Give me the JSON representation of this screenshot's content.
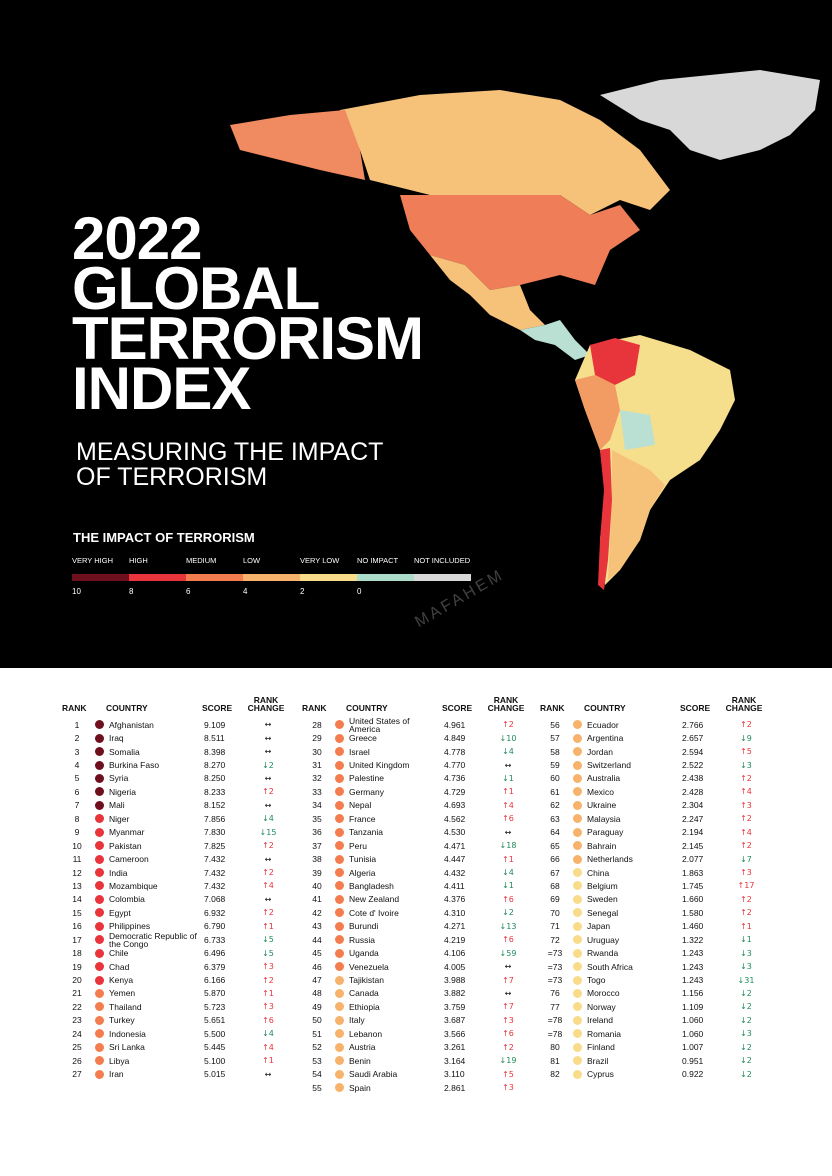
{
  "header": {
    "title_lines": [
      "2022",
      "GLOBAL",
      "TERRORISM",
      "INDEX"
    ],
    "subtitle_lines": [
      "MEASURING THE IMPACT",
      "OF TERRORISM"
    ]
  },
  "legend": {
    "title": "THE IMPACT OF TERRORISM",
    "items": [
      {
        "label": "VERY HIGH",
        "color": "#6d0f1c"
      },
      {
        "label": "HIGH",
        "color": "#e8343b"
      },
      {
        "label": "MEDIUM",
        "color": "#f47d4f"
      },
      {
        "label": "LOW",
        "color": "#f7b36b"
      },
      {
        "label": "VERY LOW",
        "color": "#f8dc8a"
      },
      {
        "label": "NO IMPACT",
        "color": "#aadcc9"
      },
      {
        "label": "NOT INCLUDED",
        "color": "#d8d8d8"
      }
    ],
    "scale": [
      10,
      8,
      6,
      4,
      2,
      0
    ]
  },
  "watermark": "MAFAHEM",
  "columns": [
    "RANK",
    "COUNTRY",
    "SCORE",
    "RANK CHANGE"
  ],
  "tables": [
    {
      "rows": [
        [
          "1",
          "Afghanistan",
          "9.109",
          "↔"
        ],
        [
          "2",
          "Iraq",
          "8.511",
          "↔"
        ],
        [
          "3",
          "Somalia",
          "8.398",
          "↔"
        ],
        [
          "4",
          "Burkina Faso",
          "8.270",
          "↓2"
        ],
        [
          "5",
          "Syria",
          "8.250",
          "↔"
        ],
        [
          "6",
          "Nigeria",
          "8.233",
          "↑2"
        ],
        [
          "7",
          "Mali",
          "8.152",
          "↔"
        ],
        [
          "8",
          "Niger",
          "7.856",
          "↓4"
        ],
        [
          "9",
          "Myanmar",
          "7.830",
          "↓15"
        ],
        [
          "10",
          "Pakistan",
          "7.825",
          "↑2"
        ],
        [
          "11",
          "Cameroon",
          "7.432",
          "↔"
        ],
        [
          "12",
          "India",
          "7.432",
          "↑2"
        ],
        [
          "13",
          "Mozambique",
          "7.432",
          "↑4"
        ],
        [
          "14",
          "Colombia",
          "7.068",
          "↔"
        ],
        [
          "15",
          "Egypt",
          "6.932",
          "↑2"
        ],
        [
          "16",
          "Philippines",
          "6.790",
          "↑1"
        ],
        [
          "17",
          "Democratic Republic of the Congo",
          "6.733",
          "↓5"
        ],
        [
          "18",
          "Chile",
          "6.496",
          "↓5"
        ],
        [
          "19",
          "Chad",
          "6.379",
          "↑3"
        ],
        [
          "20",
          "Kenya",
          "6.166",
          "↑2"
        ],
        [
          "21",
          "Yemen",
          "5.870",
          "↑1"
        ],
        [
          "22",
          "Thailand",
          "5.723",
          "↑3"
        ],
        [
          "23",
          "Turkey",
          "5.651",
          "↑6"
        ],
        [
          "24",
          "Indonesia",
          "5.500",
          "↓4"
        ],
        [
          "25",
          "Sri Lanka",
          "5.445",
          "↑4"
        ],
        [
          "26",
          "Libya",
          "5.100",
          "↑1"
        ],
        [
          "27",
          "Iran",
          "5.015",
          "↔"
        ]
      ]
    },
    {
      "rows": [
        [
          "28",
          "United States of America",
          "4.961",
          "↑2"
        ],
        [
          "29",
          "Greece",
          "4.849",
          "↓10"
        ],
        [
          "30",
          "Israel",
          "4.778",
          "↓4"
        ],
        [
          "31",
          "United Kingdom",
          "4.770",
          "↔"
        ],
        [
          "32",
          "Palestine",
          "4.736",
          "↓1"
        ],
        [
          "33",
          "Germany",
          "4.729",
          "↑1"
        ],
        [
          "34",
          "Nepal",
          "4.693",
          "↑4"
        ],
        [
          "35",
          "France",
          "4.562",
          "↑6"
        ],
        [
          "36",
          "Tanzania",
          "4.530",
          "↔"
        ],
        [
          "37",
          "Peru",
          "4.471",
          "↓18"
        ],
        [
          "38",
          "Tunisia",
          "4.447",
          "↑1"
        ],
        [
          "39",
          "Algeria",
          "4.432",
          "↓4"
        ],
        [
          "40",
          "Bangladesh",
          "4.411",
          "↓1"
        ],
        [
          "41",
          "New Zealand",
          "4.376",
          "↑6"
        ],
        [
          "42",
          "Cote d' Ivoire",
          "4.310",
          "↓2"
        ],
        [
          "43",
          "Burundi",
          "4.271",
          "↓13"
        ],
        [
          "44",
          "Russia",
          "4.219",
          "↑6"
        ],
        [
          "45",
          "Uganda",
          "4.106",
          "↓59"
        ],
        [
          "46",
          "Venezuela",
          "4.005",
          "↔"
        ],
        [
          "47",
          "Tajikistan",
          "3.988",
          "↑7"
        ],
        [
          "48",
          "Canada",
          "3.882",
          "↔"
        ],
        [
          "49",
          "Ethiopia",
          "3.759",
          "↑7"
        ],
        [
          "50",
          "Italy",
          "3.687",
          "↑3"
        ],
        [
          "51",
          "Lebanon",
          "3.566",
          "↑6"
        ],
        [
          "52",
          "Austria",
          "3.261",
          "↑2"
        ],
        [
          "53",
          "Benin",
          "3.164",
          "↓19"
        ],
        [
          "54",
          "Saudi Arabia",
          "3.110",
          "↑5"
        ],
        [
          "55",
          "Spain",
          "2.861",
          "↑3"
        ]
      ]
    },
    {
      "rows": [
        [
          "56",
          "Ecuador",
          "2.766",
          "↑2"
        ],
        [
          "57",
          "Argentina",
          "2.657",
          "↓9"
        ],
        [
          "58",
          "Jordan",
          "2.594",
          "↑5"
        ],
        [
          "59",
          "Switzerland",
          "2.522",
          "↓3"
        ],
        [
          "60",
          "Australia",
          "2.438",
          "↑2"
        ],
        [
          "61",
          "Mexico",
          "2.428",
          "↑4"
        ],
        [
          "62",
          "Ukraine",
          "2.304",
          "↑3"
        ],
        [
          "63",
          "Malaysia",
          "2.247",
          "↑2"
        ],
        [
          "64",
          "Paraguay",
          "2.194",
          "↑4"
        ],
        [
          "65",
          "Bahrain",
          "2.145",
          "↑2"
        ],
        [
          "66",
          "Netherlands",
          "2.077",
          "↓7"
        ],
        [
          "67",
          "China",
          "1.863",
          "↑3"
        ],
        [
          "68",
          "Belgium",
          "1.745",
          "↑17"
        ],
        [
          "69",
          "Sweden",
          "1.660",
          "↑2"
        ],
        [
          "70",
          "Senegal",
          "1.580",
          "↑2"
        ],
        [
          "71",
          "Japan",
          "1.460",
          "↑1"
        ],
        [
          "72",
          "Uruguay",
          "1.322",
          "↓1"
        ],
        [
          "=73",
          "Rwanda",
          "1.243",
          "↓3"
        ],
        [
          "=73",
          "South Africa",
          "1.243",
          "↓3"
        ],
        [
          "=73",
          "Togo",
          "1.243",
          "↓31"
        ],
        [
          "76",
          "Morocco",
          "1.156",
          "↓2"
        ],
        [
          "77",
          "Norway",
          "1.109",
          "↓2"
        ],
        [
          "=78",
          "Ireland",
          "1.060",
          "↓2"
        ],
        [
          "=78",
          "Romania",
          "1.060",
          "↓3"
        ],
        [
          "80",
          "Finland",
          "1.007",
          "↓2"
        ],
        [
          "81",
          "Brazil",
          "0.951",
          "↓2"
        ],
        [
          "82",
          "Cyprus",
          "0.922",
          "↓2"
        ]
      ]
    }
  ]
}
